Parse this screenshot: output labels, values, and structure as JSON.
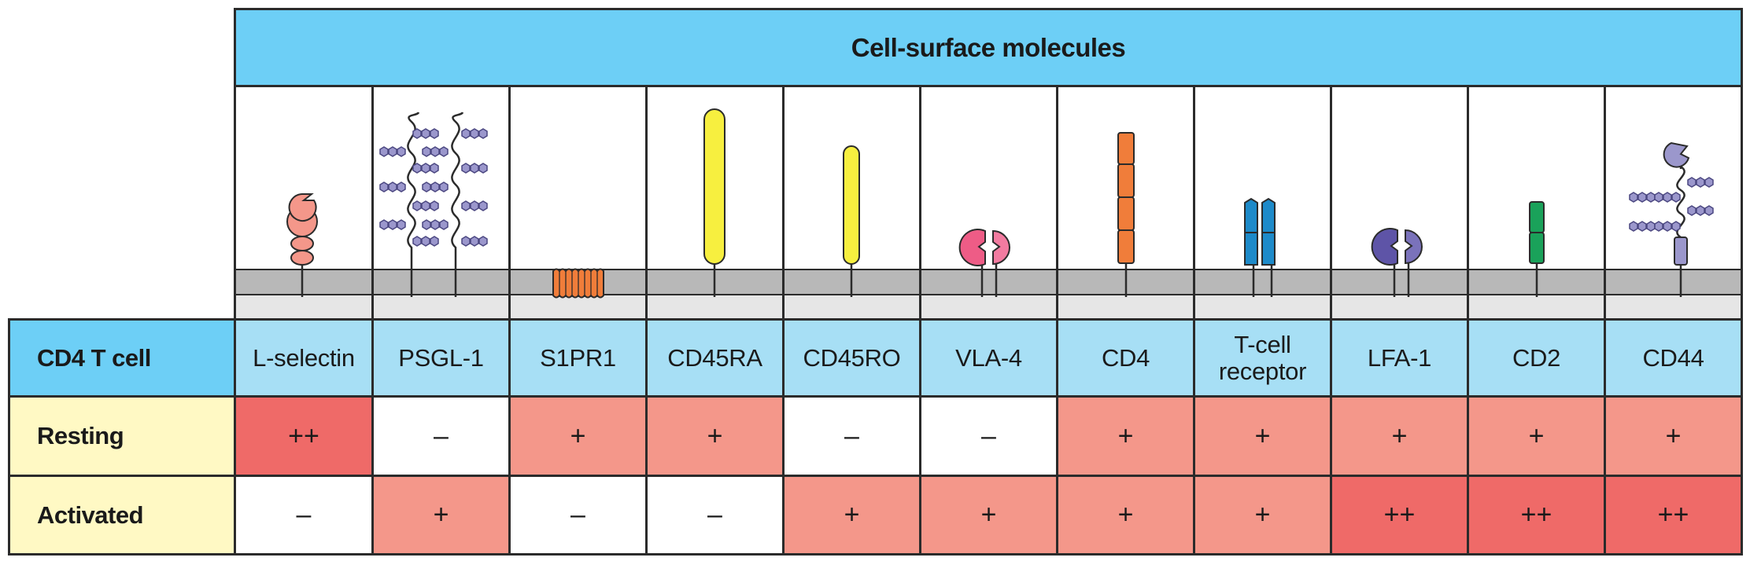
{
  "header": {
    "title": "Cell-surface molecules"
  },
  "row_header": {
    "label": "CD4  T cell"
  },
  "molecules": [
    {
      "key": "l-selectin",
      "label": "L-selectin",
      "icon": "lectin-icon"
    },
    {
      "key": "psgl-1",
      "label": "PSGL-1",
      "icon": "glycoprotein-icon"
    },
    {
      "key": "s1pr1",
      "label": "S1PR1",
      "icon": "seven-transmembrane-receptor-icon"
    },
    {
      "key": "cd45ra",
      "label": "CD45RA",
      "icon": "long-rod-icon"
    },
    {
      "key": "cd45ro",
      "label": "CD45RO",
      "icon": "short-rod-icon"
    },
    {
      "key": "vla-4",
      "label": "VLA-4",
      "icon": "integrin-icon"
    },
    {
      "key": "cd4",
      "label": "CD4",
      "icon": "four-domain-icon"
    },
    {
      "key": "tcr",
      "label": "T-cell\nreceptor",
      "icon": "tcr-icon"
    },
    {
      "key": "lfa-1",
      "label": "LFA-1",
      "icon": "integrin-icon"
    },
    {
      "key": "cd2",
      "label": "CD2",
      "icon": "two-domain-icon"
    },
    {
      "key": "cd44",
      "label": "CD44",
      "icon": "glycosylated-lectin-icon"
    }
  ],
  "rows": [
    {
      "label": "Resting",
      "values": [
        "++",
        "–",
        "+",
        "+",
        "–",
        "–",
        "+",
        "+",
        "+",
        "+",
        "+"
      ]
    },
    {
      "label": "Activated",
      "values": [
        "–",
        "+",
        "–",
        "–",
        "+",
        "+",
        "+",
        "+",
        "++",
        "++",
        "++"
      ]
    }
  ],
  "colors": {
    "header_blue": "#6dcff6",
    "label_blue": "#a7dff5",
    "row_label_yellow": "#fff9c4",
    "level_none": "#ffffff",
    "level_plus": "#f4978a",
    "level_plusplus": "#ef6a68",
    "membrane_dark": "#b8b8b8",
    "membrane_light": "#e6e6e6"
  }
}
